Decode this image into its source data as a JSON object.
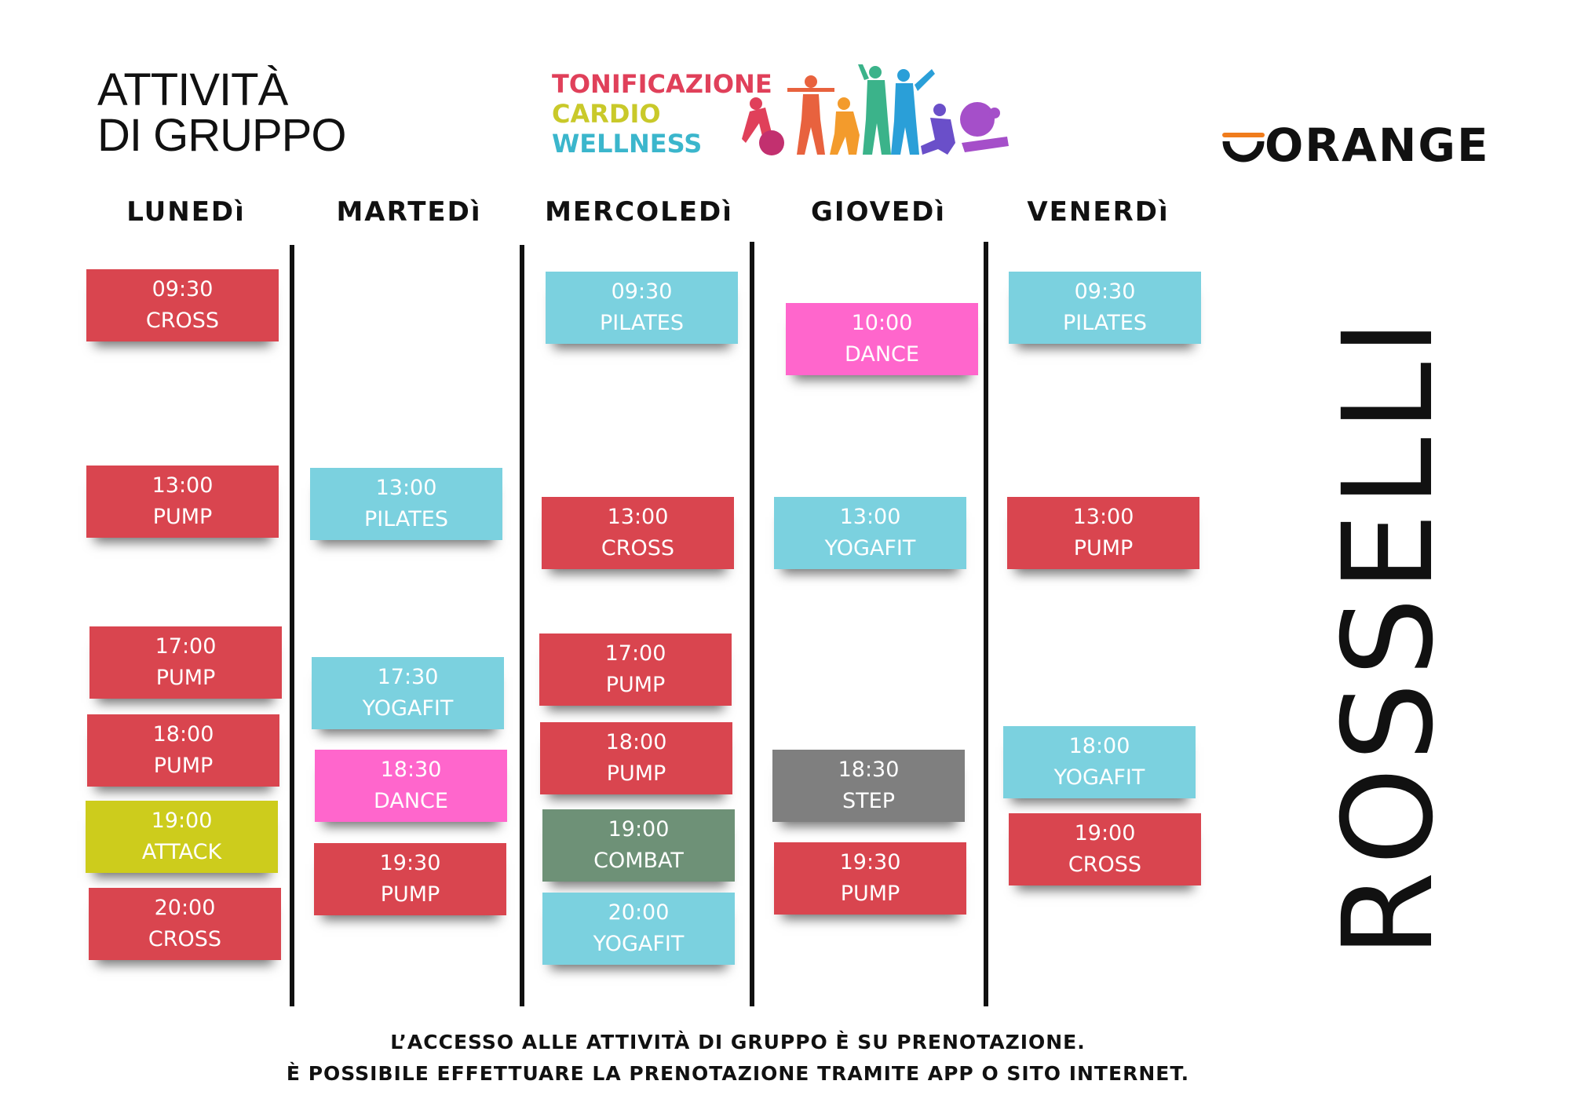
{
  "header": {
    "title_line1": "ATTIVITÀ",
    "title_line2": "DI GRUPPO",
    "categories": [
      {
        "label": "TONIFICAZIONE",
        "color": "#e0405a"
      },
      {
        "label": "CARDIO",
        "color": "#c9c92a"
      },
      {
        "label": "WELLNESS",
        "color": "#3bb6cc"
      }
    ],
    "brand": "ORANGE",
    "location": "ROSSELLI"
  },
  "colors": {
    "red": "#d9454f",
    "blue": "#7bd1df",
    "pink": "#ff66cc",
    "olive": "#cdcc1c",
    "green": "#6e9177",
    "gray": "#7f7f7f"
  },
  "days": [
    {
      "label": "LUNEDì",
      "classes": [
        {
          "time": "09:30",
          "name": "CROSS",
          "color": "red"
        },
        {
          "time": "13:00",
          "name": "PUMP",
          "color": "red"
        },
        {
          "time": "17:00",
          "name": "PUMP",
          "color": "red"
        },
        {
          "time": "18:00",
          "name": "PUMP",
          "color": "red"
        },
        {
          "time": "19:00",
          "name": "ATTACK",
          "color": "olive"
        },
        {
          "time": "20:00",
          "name": "CROSS",
          "color": "red"
        }
      ]
    },
    {
      "label": "MARTEDì",
      "classes": [
        {
          "time": "13:00",
          "name": "PILATES",
          "color": "blue"
        },
        {
          "time": "17:30",
          "name": "YOGAFIT",
          "color": "blue"
        },
        {
          "time": "18:30",
          "name": "DANCE",
          "color": "pink"
        },
        {
          "time": "19:30",
          "name": "PUMP",
          "color": "red"
        }
      ]
    },
    {
      "label": "MERCOLEDì",
      "classes": [
        {
          "time": "09:30",
          "name": "PILATES",
          "color": "blue"
        },
        {
          "time": "13:00",
          "name": "CROSS",
          "color": "red"
        },
        {
          "time": "17:00",
          "name": "PUMP",
          "color": "red"
        },
        {
          "time": "18:00",
          "name": "PUMP",
          "color": "red"
        },
        {
          "time": "19:00",
          "name": "COMBAT",
          "color": "green"
        },
        {
          "time": "20:00",
          "name": "YOGAFIT",
          "color": "blue"
        }
      ]
    },
    {
      "label": "GIOVEDì",
      "classes": [
        {
          "time": "10:00",
          "name": "DANCE",
          "color": "pink"
        },
        {
          "time": "13:00",
          "name": "YOGAFIT",
          "color": "blue"
        },
        {
          "time": "18:30",
          "name": "STEP",
          "color": "gray"
        },
        {
          "time": "19:30",
          "name": "PUMP",
          "color": "red"
        }
      ]
    },
    {
      "label": "VENERDì",
      "classes": [
        {
          "time": "09:30",
          "name": "PILATES",
          "color": "blue"
        },
        {
          "time": "13:00",
          "name": "PUMP",
          "color": "red"
        },
        {
          "time": "18:00",
          "name": "YOGAFIT",
          "color": "blue"
        },
        {
          "time": "19:00",
          "name": "CROSS",
          "color": "red"
        }
      ]
    }
  ],
  "footer": {
    "line1": "L’ACCESSO ALLE ATTIVITÀ DI GRUPPO È SU PRENOTAZIONE.",
    "line2": "È POSSIBILE EFFETTUARE LA PRENOTAZIONE TRAMITE APP O SITO INTERNET."
  }
}
